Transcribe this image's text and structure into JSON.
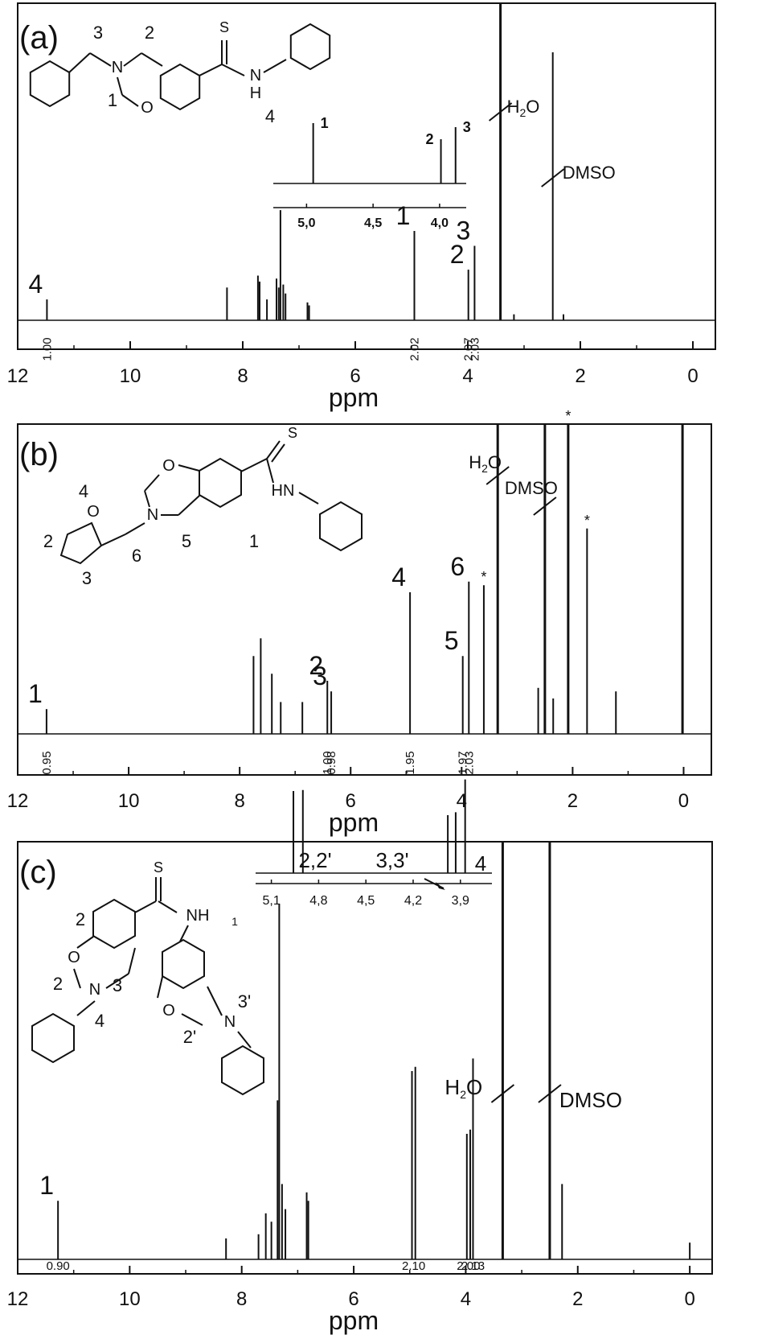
{
  "chart_data": [
    {
      "type": "line",
      "panel_label": "(a)",
      "xlabel": "ppm",
      "xlim": [
        12,
        -0.4
      ],
      "x_reversed": true,
      "xticks": [
        "12",
        "10",
        "8",
        "6",
        "4",
        "2",
        "0"
      ],
      "peaks": [
        {
          "x": 11.48,
          "h": 0.07,
          "label": "4"
        },
        {
          "x": 8.28,
          "h": 0.11
        },
        {
          "x": 7.73,
          "h": 0.15
        },
        {
          "x": 7.7,
          "h": 0.13
        },
        {
          "x": 7.57,
          "h": 0.07
        },
        {
          "x": 7.4,
          "h": 0.14
        },
        {
          "x": 7.36,
          "h": 0.11
        },
        {
          "x": 7.33,
          "h": 0.37
        },
        {
          "x": 7.28,
          "h": 0.12
        },
        {
          "x": 7.24,
          "h": 0.09
        },
        {
          "x": 6.85,
          "h": 0.06
        },
        {
          "x": 6.82,
          "h": 0.05
        },
        {
          "x": 4.95,
          "h": 0.3,
          "label": "1"
        },
        {
          "x": 3.99,
          "h": 0.17,
          "label": "2"
        },
        {
          "x": 3.88,
          "h": 0.25,
          "label": "3"
        },
        {
          "x": 3.42,
          "h": 1.2,
          "label_tex": "H2O"
        },
        {
          "x": 2.49,
          "h": 0.9,
          "label_tex": "DMSO"
        },
        {
          "x": 3.18,
          "h": 0.02
        },
        {
          "x": 2.3,
          "h": 0.02
        }
      ],
      "integrals": [
        {
          "x": 11.48,
          "text": "1.00"
        },
        {
          "x": 4.95,
          "text": "2.02"
        },
        {
          "x": 3.99,
          "text": "2.07"
        },
        {
          "x": 3.88,
          "text": "2.03"
        }
      ],
      "structure_labels": [
        "3",
        "2",
        "1",
        "4"
      ],
      "structure_atoms": [
        "N",
        "O",
        "S",
        "N",
        "H"
      ],
      "inset": {
        "xlim": [
          5.25,
          3.8
        ],
        "xticks": [
          "5,0",
          "4,5",
          "4,0"
        ],
        "peaks": [
          {
            "x": 4.95,
            "h": 0.75,
            "label": "1"
          },
          {
            "x": 3.99,
            "h": 0.55,
            "label": "2"
          },
          {
            "x": 3.88,
            "h": 0.7,
            "label": "3"
          }
        ]
      }
    },
    {
      "type": "line",
      "panel_label": "(b)",
      "xlabel": "ppm",
      "xlim": [
        12,
        -0.5
      ],
      "x_reversed": true,
      "xticks": [
        "12",
        "10",
        "8",
        "6",
        "4",
        "2",
        "0"
      ],
      "peaks": [
        {
          "x": 11.48,
          "h": 0.07,
          "label": "1"
        },
        {
          "x": 7.75,
          "h": 0.22
        },
        {
          "x": 7.62,
          "h": 0.27
        },
        {
          "x": 7.42,
          "h": 0.17
        },
        {
          "x": 7.26,
          "h": 0.09
        },
        {
          "x": 6.87,
          "h": 0.09
        },
        {
          "x": 6.42,
          "h": 0.15,
          "label": "2"
        },
        {
          "x": 6.35,
          "h": 0.12,
          "label": "3"
        },
        {
          "x": 4.93,
          "h": 0.4,
          "label": "4"
        },
        {
          "x": 3.98,
          "h": 0.22,
          "label": "5"
        },
        {
          "x": 3.87,
          "h": 0.43,
          "label": "6"
        },
        {
          "x": 3.6,
          "h": 0.42,
          "label": "*"
        },
        {
          "x": 3.35,
          "h": 1.2,
          "label_tex": "H2O"
        },
        {
          "x": 2.5,
          "h": 1.2,
          "label_tex": "DMSO"
        },
        {
          "x": 2.62,
          "h": 0.13
        },
        {
          "x": 2.35,
          "h": 0.1
        },
        {
          "x": 2.08,
          "h": 1.2,
          "label": "*"
        },
        {
          "x": 1.74,
          "h": 0.58,
          "label": "*"
        },
        {
          "x": 1.22,
          "h": 0.12
        },
        {
          "x": 0.02,
          "h": 1.2
        }
      ],
      "integrals": [
        {
          "x": 11.48,
          "text": "0.95"
        },
        {
          "x": 6.42,
          "text": "1.00"
        },
        {
          "x": 6.35,
          "text": "0.98"
        },
        {
          "x": 4.93,
          "text": "1.95"
        },
        {
          "x": 3.98,
          "text": "1.97"
        },
        {
          "x": 3.87,
          "text": "2.03"
        }
      ],
      "structure_labels": [
        "4",
        "5",
        "6",
        "1",
        "2",
        "3"
      ],
      "structure_atoms": [
        "O",
        "N",
        "S",
        "HN",
        "O"
      ]
    },
    {
      "type": "line",
      "panel_label": "(c)",
      "xlabel": "ppm",
      "xlim": [
        12,
        -0.4
      ],
      "x_reversed": true,
      "xticks": [
        "12",
        "10",
        "8",
        "6",
        "4",
        "2",
        "0"
      ],
      "peaks": [
        {
          "x": 11.28,
          "h": 0.14,
          "label": "1"
        },
        {
          "x": 8.28,
          "h": 0.05
        },
        {
          "x": 7.7,
          "h": 0.06
        },
        {
          "x": 7.57,
          "h": 0.11
        },
        {
          "x": 7.47,
          "h": 0.09
        },
        {
          "x": 7.36,
          "h": 0.38
        },
        {
          "x": 7.33,
          "h": 0.85
        },
        {
          "x": 7.28,
          "h": 0.18
        },
        {
          "x": 7.22,
          "h": 0.12
        },
        {
          "x": 6.84,
          "h": 0.16
        },
        {
          "x": 6.81,
          "h": 0.14
        },
        {
          "x": 4.96,
          "h": 0.45
        },
        {
          "x": 4.9,
          "h": 0.46
        },
        {
          "x": 3.98,
          "h": 0.3
        },
        {
          "x": 3.92,
          "h": 0.31
        },
        {
          "x": 3.87,
          "h": 0.48
        },
        {
          "x": 3.34,
          "h": 1.2,
          "label_tex": "H2O"
        },
        {
          "x": 2.5,
          "h": 1.2,
          "label_tex": "DMSO"
        },
        {
          "x": 2.28,
          "h": 0.18
        },
        {
          "x": 0.0,
          "h": 0.04
        }
      ],
      "integrals": [
        {
          "x": 11.28,
          "text": "0.90"
        },
        {
          "x": 4.93,
          "text": "2.10"
        },
        {
          "x": 3.95,
          "text": "2.00"
        },
        {
          "x": 3.87,
          "text": "2.13"
        }
      ],
      "structure_labels": [
        "1",
        "2",
        "3",
        "4",
        "3'",
        "2'"
      ],
      "structure_atoms": [
        "S",
        "NH",
        "O",
        "N",
        "O",
        "N"
      ],
      "inset": {
        "xlim": [
          5.2,
          3.7
        ],
        "xticks": [
          "5,1",
          "4,8",
          "4,5",
          "4,2",
          "3,9"
        ],
        "peaks": [
          {
            "x": 4.96,
            "h": 0.85
          },
          {
            "x": 4.9,
            "h": 0.86
          },
          {
            "x": 3.98,
            "h": 0.6
          },
          {
            "x": 3.93,
            "h": 0.63
          },
          {
            "x": 3.87,
            "h": 0.97
          }
        ],
        "annotations": [
          "2,2'",
          "3,3'",
          "4"
        ]
      }
    }
  ]
}
